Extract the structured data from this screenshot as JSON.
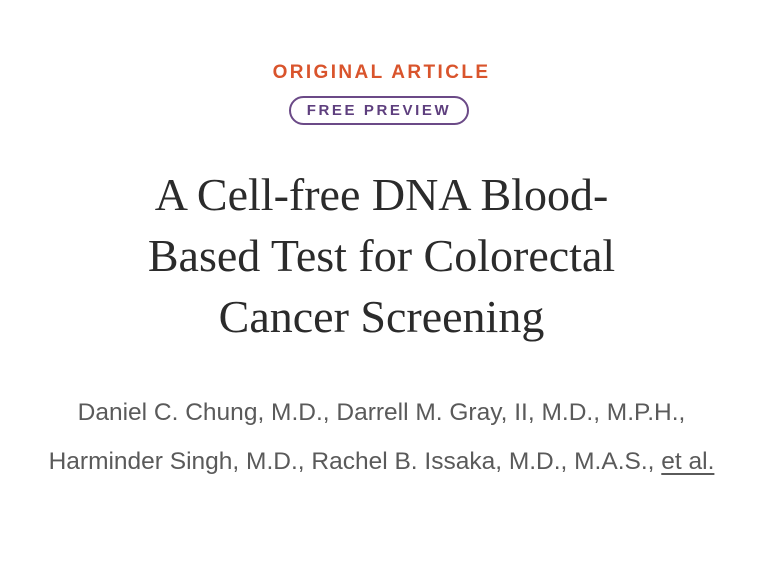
{
  "article": {
    "section_label": "ORIGINAL ARTICLE",
    "badge": "FREE PREVIEW",
    "title_lines": [
      "A Cell-free DNA Blood-",
      "Based Test for Colorectal",
      "Cancer Screening"
    ],
    "authors_text": "Daniel C. Chung, M.D., Darrell M. Gray, II, M.D., M.P.H., Harminder Singh, M.D., Rachel B. Issaka, M.D., M.A.S.,",
    "et_al_link": "et al."
  },
  "colors": {
    "section_label": "#d9542c",
    "badge": "#5e3f7e",
    "title": "#2b2b2b",
    "authors": "#5a5a5a",
    "background": "#ffffff"
  }
}
